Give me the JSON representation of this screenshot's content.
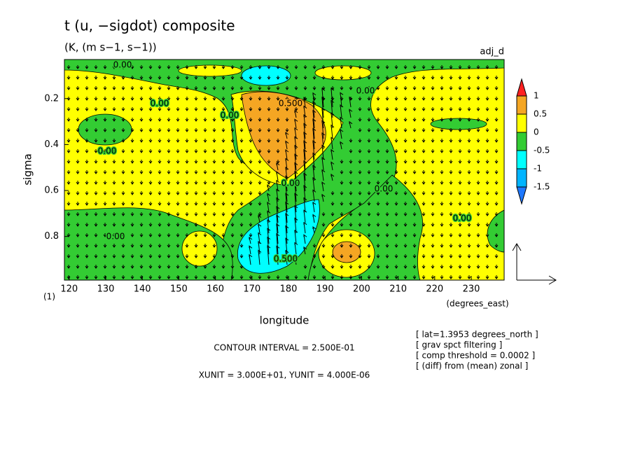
{
  "chart_data": {
    "type": "contour",
    "title": "t (u, −sigdot) composite",
    "subtitle": "(K, (m s−1, s−1))",
    "label_right": "adj_d",
    "x_label": "longitude",
    "x_unit": "(degrees_east)",
    "y_label": "sigma",
    "y_unit": "(1)",
    "xlim": [
      118.7,
      239
    ],
    "xticks": [
      120,
      130,
      140,
      150,
      160,
      170,
      180,
      190,
      200,
      210,
      220,
      230
    ],
    "ylim": [
      0.03,
      0.99
    ],
    "y_reversed": true,
    "yticks": [
      0.2,
      0.4,
      0.6,
      0.8
    ],
    "levels": [
      -1.5,
      -1,
      -0.5,
      0,
      0.5,
      1
    ],
    "colors": [
      "#1e78ff",
      "#00b4ff",
      "#00ffff",
      "#33cc33",
      "#ffff00",
      "#f5a623",
      "#ff2020"
    ],
    "contour_labels": [
      "0.00",
      "0.00",
      "0.00",
      "0.00",
      "0.00",
      "0.00",
      "0.00",
      "0.00",
      "0.00",
      "0.500",
      "0.500"
    ],
    "contour_interval": "CONTOUR INTERVAL = 2.500E-01",
    "vector_units": "XUNIT = 3.000E+01, YUNIT = 4.000E-06",
    "notes": [
      "[ lat=1.3953 degrees_north ]",
      "[ grav spct filtering ]",
      "[ comp threshold = 0.0002 ]",
      "[ (diff) from (mean) zonal ]"
    ]
  }
}
